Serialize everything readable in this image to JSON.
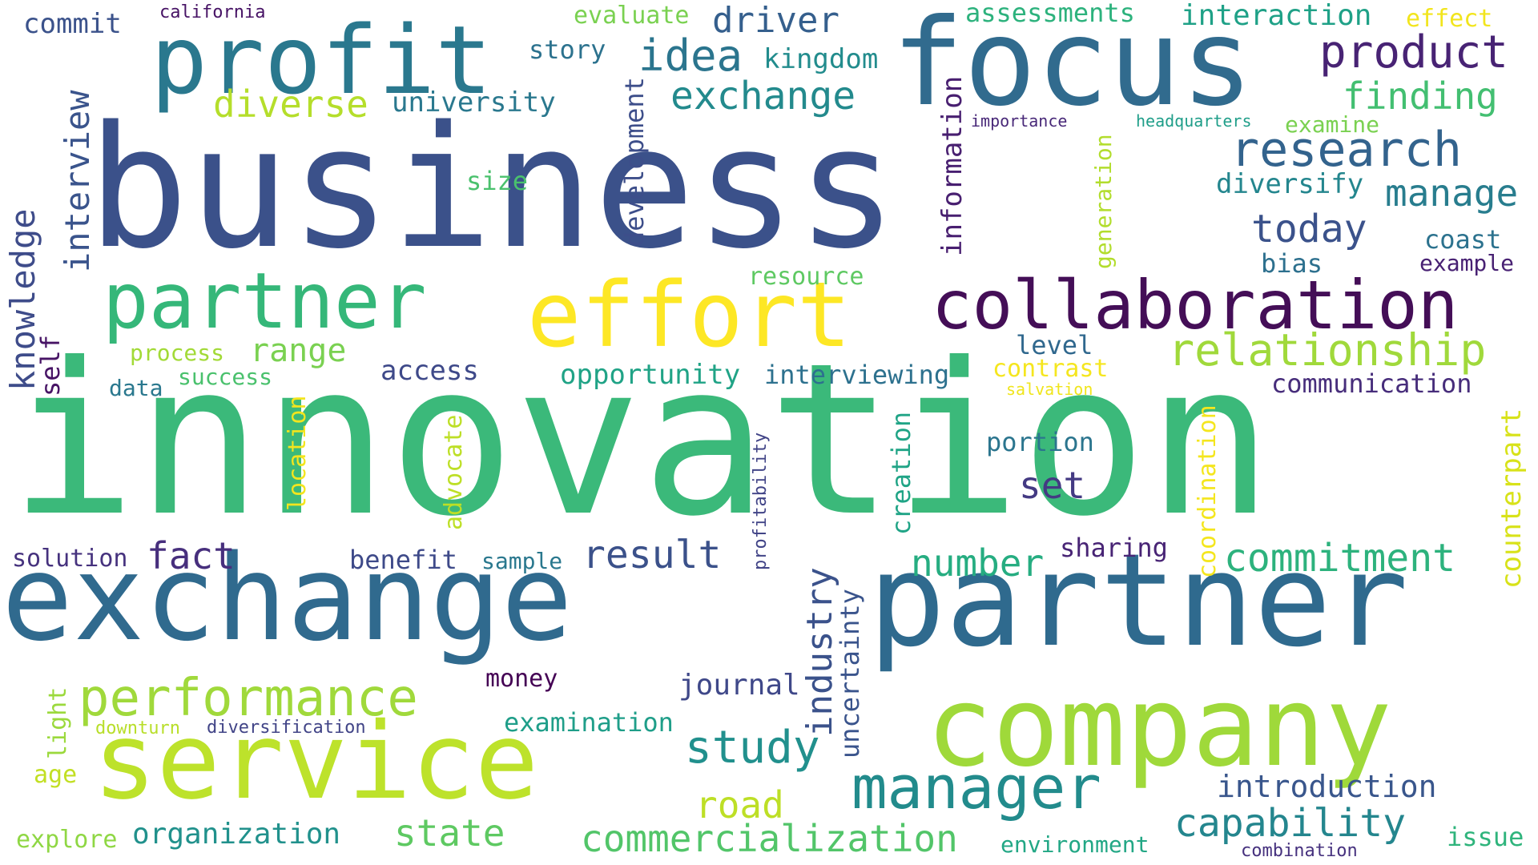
{
  "words": [
    {
      "text": "innovation",
      "color": "#3bb97a"
    },
    {
      "text": "business",
      "color": "#3b518a"
    },
    {
      "text": "exchange",
      "color": "#306a8e"
    },
    {
      "text": "partner",
      "color": "#2f6a8e"
    },
    {
      "text": "company",
      "color": "#9fd93a"
    },
    {
      "text": "focus",
      "color": "#316b8e"
    },
    {
      "text": "service",
      "color": "#bde22b"
    },
    {
      "text": "profit",
      "color": "#2a788e"
    },
    {
      "text": "partner",
      "color": "#35b779"
    },
    {
      "text": "effort",
      "color": "#fde725"
    },
    {
      "text": "collaboration",
      "color": "#440e57"
    },
    {
      "text": "manager",
      "color": "#228b8c"
    },
    {
      "text": "performance",
      "color": "#a0d93b"
    },
    {
      "text": "relationship",
      "color": "#a0d93b"
    },
    {
      "text": "research",
      "color": "#33638d"
    },
    {
      "text": "product",
      "color": "#482374"
    },
    {
      "text": "exchange",
      "color": "#238a8d"
    },
    {
      "text": "idea",
      "color": "#2b758e"
    },
    {
      "text": "driver",
      "color": "#355f8d"
    },
    {
      "text": "study",
      "color": "#21908d"
    },
    {
      "text": "commercialization",
      "color": "#52c569"
    },
    {
      "text": "capability",
      "color": "#24868e"
    },
    {
      "text": "commitment",
      "color": "#2db27d"
    },
    {
      "text": "finding",
      "color": "#43bf71"
    },
    {
      "text": "manage",
      "color": "#287d8e"
    },
    {
      "text": "today",
      "color": "#3b528b"
    },
    {
      "text": "result",
      "color": "#3b518a"
    },
    {
      "text": "number",
      "color": "#26ad81"
    },
    {
      "text": "road",
      "color": "#bddf26"
    },
    {
      "text": "state",
      "color": "#5ec962"
    },
    {
      "text": "fact",
      "color": "#472f7d"
    },
    {
      "text": "set",
      "color": "#443a83"
    },
    {
      "text": "diverse",
      "color": "#b5de2b"
    },
    {
      "text": "range",
      "color": "#7ad151"
    },
    {
      "text": "introduction",
      "color": "#39568c"
    },
    {
      "text": "organization",
      "color": "#21918c"
    },
    {
      "text": "opportunity",
      "color": "#20a386"
    },
    {
      "text": "university",
      "color": "#2a788e"
    },
    {
      "text": "access",
      "color": "#3e4989"
    },
    {
      "text": "interviewing",
      "color": "#2d718e"
    },
    {
      "text": "journal",
      "color": "#3f4889"
    },
    {
      "text": "examination",
      "color": "#1f9e89"
    },
    {
      "text": "communication",
      "color": "#472d7b"
    },
    {
      "text": "assessments",
      "color": "#2db27d"
    },
    {
      "text": "interaction",
      "color": "#1fa187"
    },
    {
      "text": "kingdom",
      "color": "#228c8d"
    },
    {
      "text": "evaluate",
      "color": "#7ad151"
    },
    {
      "text": "story",
      "color": "#2c728e"
    },
    {
      "text": "commit",
      "color": "#3b528b"
    },
    {
      "text": "california",
      "color": "#471365"
    },
    {
      "text": "effect",
      "color": "#f2e51d"
    },
    {
      "text": "diversify",
      "color": "#24868e"
    },
    {
      "text": "coast",
      "color": "#2c728e"
    },
    {
      "text": "bias",
      "color": "#2d708e"
    },
    {
      "text": "example",
      "color": "#482173"
    },
    {
      "text": "examine",
      "color": "#7ad151"
    },
    {
      "text": "headquarters",
      "color": "#1f9e89"
    },
    {
      "text": "importance",
      "color": "#482878"
    },
    {
      "text": "resource",
      "color": "#5ec962"
    },
    {
      "text": "size",
      "color": "#4ac16d"
    },
    {
      "text": "level",
      "color": "#30688e"
    },
    {
      "text": "contrast",
      "color": "#f5e61f"
    },
    {
      "text": "salvation",
      "color": "#f0e51c"
    },
    {
      "text": "portion",
      "color": "#2b758e"
    },
    {
      "text": "process",
      "color": "#a2da37"
    },
    {
      "text": "success",
      "color": "#4ac16d"
    },
    {
      "text": "data",
      "color": "#2a788e"
    },
    {
      "text": "benefit",
      "color": "#3e4a89"
    },
    {
      "text": "sample",
      "color": "#2a788e"
    },
    {
      "text": "sharing",
      "color": "#482475"
    },
    {
      "text": "solution",
      "color": "#46327e"
    },
    {
      "text": "money",
      "color": "#440154"
    },
    {
      "text": "diversification",
      "color": "#414487"
    },
    {
      "text": "downturn",
      "color": "#b8de29"
    },
    {
      "text": "age",
      "color": "#c2df23"
    },
    {
      "text": "explore",
      "color": "#8fd744"
    },
    {
      "text": "environment",
      "color": "#22a785"
    },
    {
      "text": "combination",
      "color": "#46317e"
    },
    {
      "text": "issue",
      "color": "#2fb47c"
    },
    {
      "text": "interview",
      "color": "#3a548c"
    },
    {
      "text": "knowledge",
      "color": "#3e4c8a"
    },
    {
      "text": "self",
      "color": "#471365"
    },
    {
      "text": "development",
      "color": "#3d4e8a"
    },
    {
      "text": "information",
      "color": "#481f70"
    },
    {
      "text": "generation",
      "color": "#b2dd2d"
    },
    {
      "text": "location",
      "color": "#f3e51e"
    },
    {
      "text": "advocate",
      "color": "#bddf26"
    },
    {
      "text": "profitability",
      "color": "#414487"
    },
    {
      "text": "creation",
      "color": "#20a486"
    },
    {
      "text": "industry",
      "color": "#3b528b"
    },
    {
      "text": "uncertainty",
      "color": "#3a548c"
    },
    {
      "text": "coordination",
      "color": "#f4e61e"
    },
    {
      "text": "counterpart",
      "color": "#d8e219"
    },
    {
      "text": "light",
      "color": "#9bd93c"
    }
  ]
}
